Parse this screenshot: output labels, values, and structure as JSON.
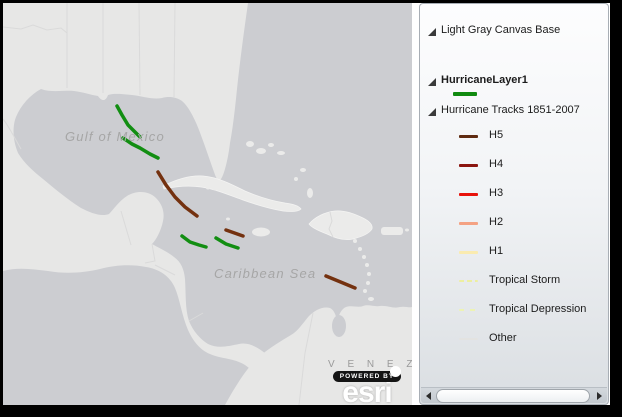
{
  "map": {
    "labels": {
      "gulf": "Gulf of Mexico",
      "caribbean": "Caribbean Sea",
      "venezuela": "V E N E Z U"
    },
    "attribution": {
      "powered_by": "POWERED BY",
      "brand": "esri"
    },
    "colors": {
      "water": "#CCCDD1",
      "land": "#E7E7E6",
      "island": "#EBEBEA",
      "boundary": "#DADADA",
      "green": "#128E12",
      "brown": "#74310F"
    },
    "tracks": [
      {
        "color": "green",
        "points": [
          [
            114,
            103
          ],
          [
            119,
            112
          ],
          [
            125,
            122
          ],
          [
            131,
            128
          ],
          [
            137,
            134
          ]
        ]
      },
      {
        "color": "green",
        "points": [
          [
            120,
            135
          ],
          [
            129,
            141
          ],
          [
            137,
            145
          ],
          [
            147,
            151
          ],
          [
            155,
            155
          ]
        ]
      },
      {
        "color": "brown",
        "points": [
          [
            155,
            169
          ],
          [
            163,
            182
          ],
          [
            172,
            194
          ],
          [
            182,
            204
          ],
          [
            194,
            213
          ]
        ]
      },
      {
        "color": "green",
        "points": [
          [
            179,
            233
          ],
          [
            187,
            239
          ],
          [
            196,
            242
          ],
          [
            203,
            244
          ]
        ]
      },
      {
        "color": "green",
        "points": [
          [
            213,
            235
          ],
          [
            223,
            241
          ],
          [
            235,
            245
          ]
        ]
      },
      {
        "color": "brown",
        "points": [
          [
            223,
            227
          ],
          [
            240,
            233
          ]
        ]
      },
      {
        "color": "brown",
        "points": [
          [
            323,
            273
          ],
          [
            340,
            280
          ],
          [
            352,
            285
          ]
        ]
      }
    ]
  },
  "legend": {
    "basemap_label": "Light Gray Canvas Base",
    "layer_label": "HurricaneLayer1",
    "layer_symbol_color": "#108A10",
    "sublayer_label": "Hurricane Tracks 1851-2007",
    "items": [
      {
        "label": "H5",
        "color": "#5F2B11",
        "style": "solid"
      },
      {
        "label": "H4",
        "color": "#8B1510",
        "style": "solid"
      },
      {
        "label": "H3",
        "color": "#E8120B",
        "style": "solid"
      },
      {
        "label": "H2",
        "color": "#F4A283",
        "style": "solid"
      },
      {
        "label": "H1",
        "color": "#FAEBB0",
        "style": "solid"
      },
      {
        "label": "Tropical Storm",
        "color": "#EDEFA0",
        "style": "dashed"
      },
      {
        "label": "Tropical Depression",
        "color": "#EDF3B4",
        "style": "dashed-sparse"
      },
      {
        "label": "Other",
        "color": "#E3E3E1",
        "style": "thin"
      }
    ]
  }
}
